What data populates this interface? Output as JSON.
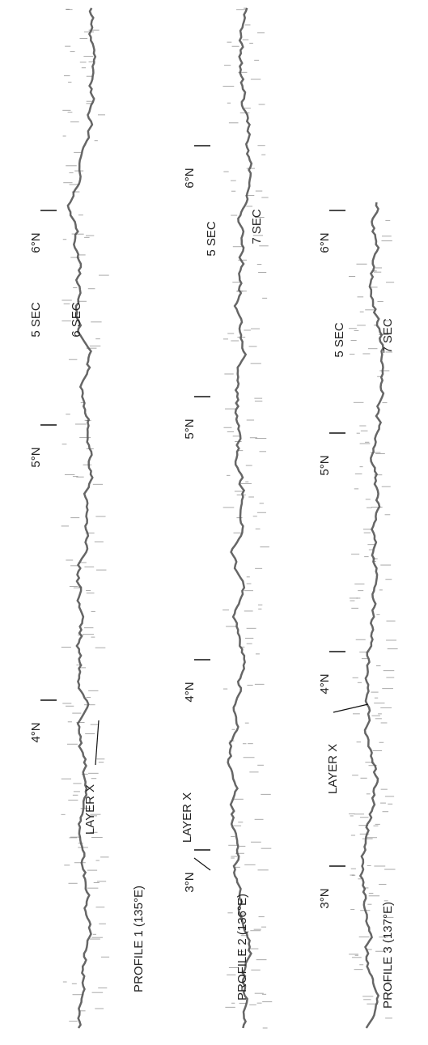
{
  "profiles": [
    {
      "title": "PROFILE 1 (135°E)",
      "latitudes": [
        "4°N",
        "5°N",
        "6°N"
      ],
      "time_labels": [
        "5 SEC",
        "6 SEC"
      ],
      "annotation": "LAYER X"
    },
    {
      "title": "PROFILE 2 (136°E)",
      "latitudes": [
        "3°N",
        "4°N",
        "5°N",
        "6°N"
      ],
      "time_labels": [
        "5 SEC",
        "7 SEC"
      ],
      "annotation": "LAYER X"
    },
    {
      "title": "PROFILE 3 (137°E)",
      "latitudes": [
        "3°N",
        "4°N",
        "5°N",
        "6°N"
      ],
      "time_labels": [
        "5 SEC",
        "7 SEC"
      ],
      "annotation": "LAYER X"
    }
  ]
}
